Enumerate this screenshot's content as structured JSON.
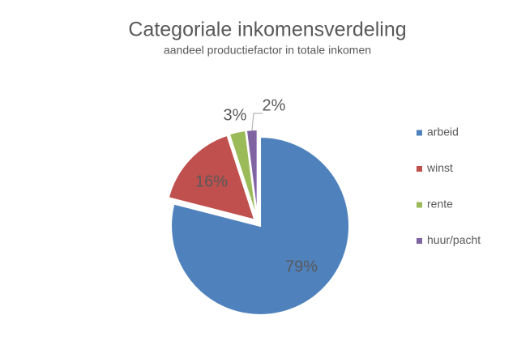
{
  "chart_data": {
    "type": "pie",
    "title": "Categoriale inkomensverdeling",
    "subtitle": "aandeel productiefactor in totale inkomen",
    "categories": [
      "arbeid",
      "winst",
      "rente",
      "huur/pacht"
    ],
    "values": [
      79,
      16,
      3,
      2
    ],
    "value_labels": [
      "79%",
      "16%",
      "3%",
      "2%"
    ],
    "colors": [
      "#4f81bd",
      "#c0504d",
      "#9bbb59",
      "#8064a2"
    ],
    "legend": "right"
  }
}
